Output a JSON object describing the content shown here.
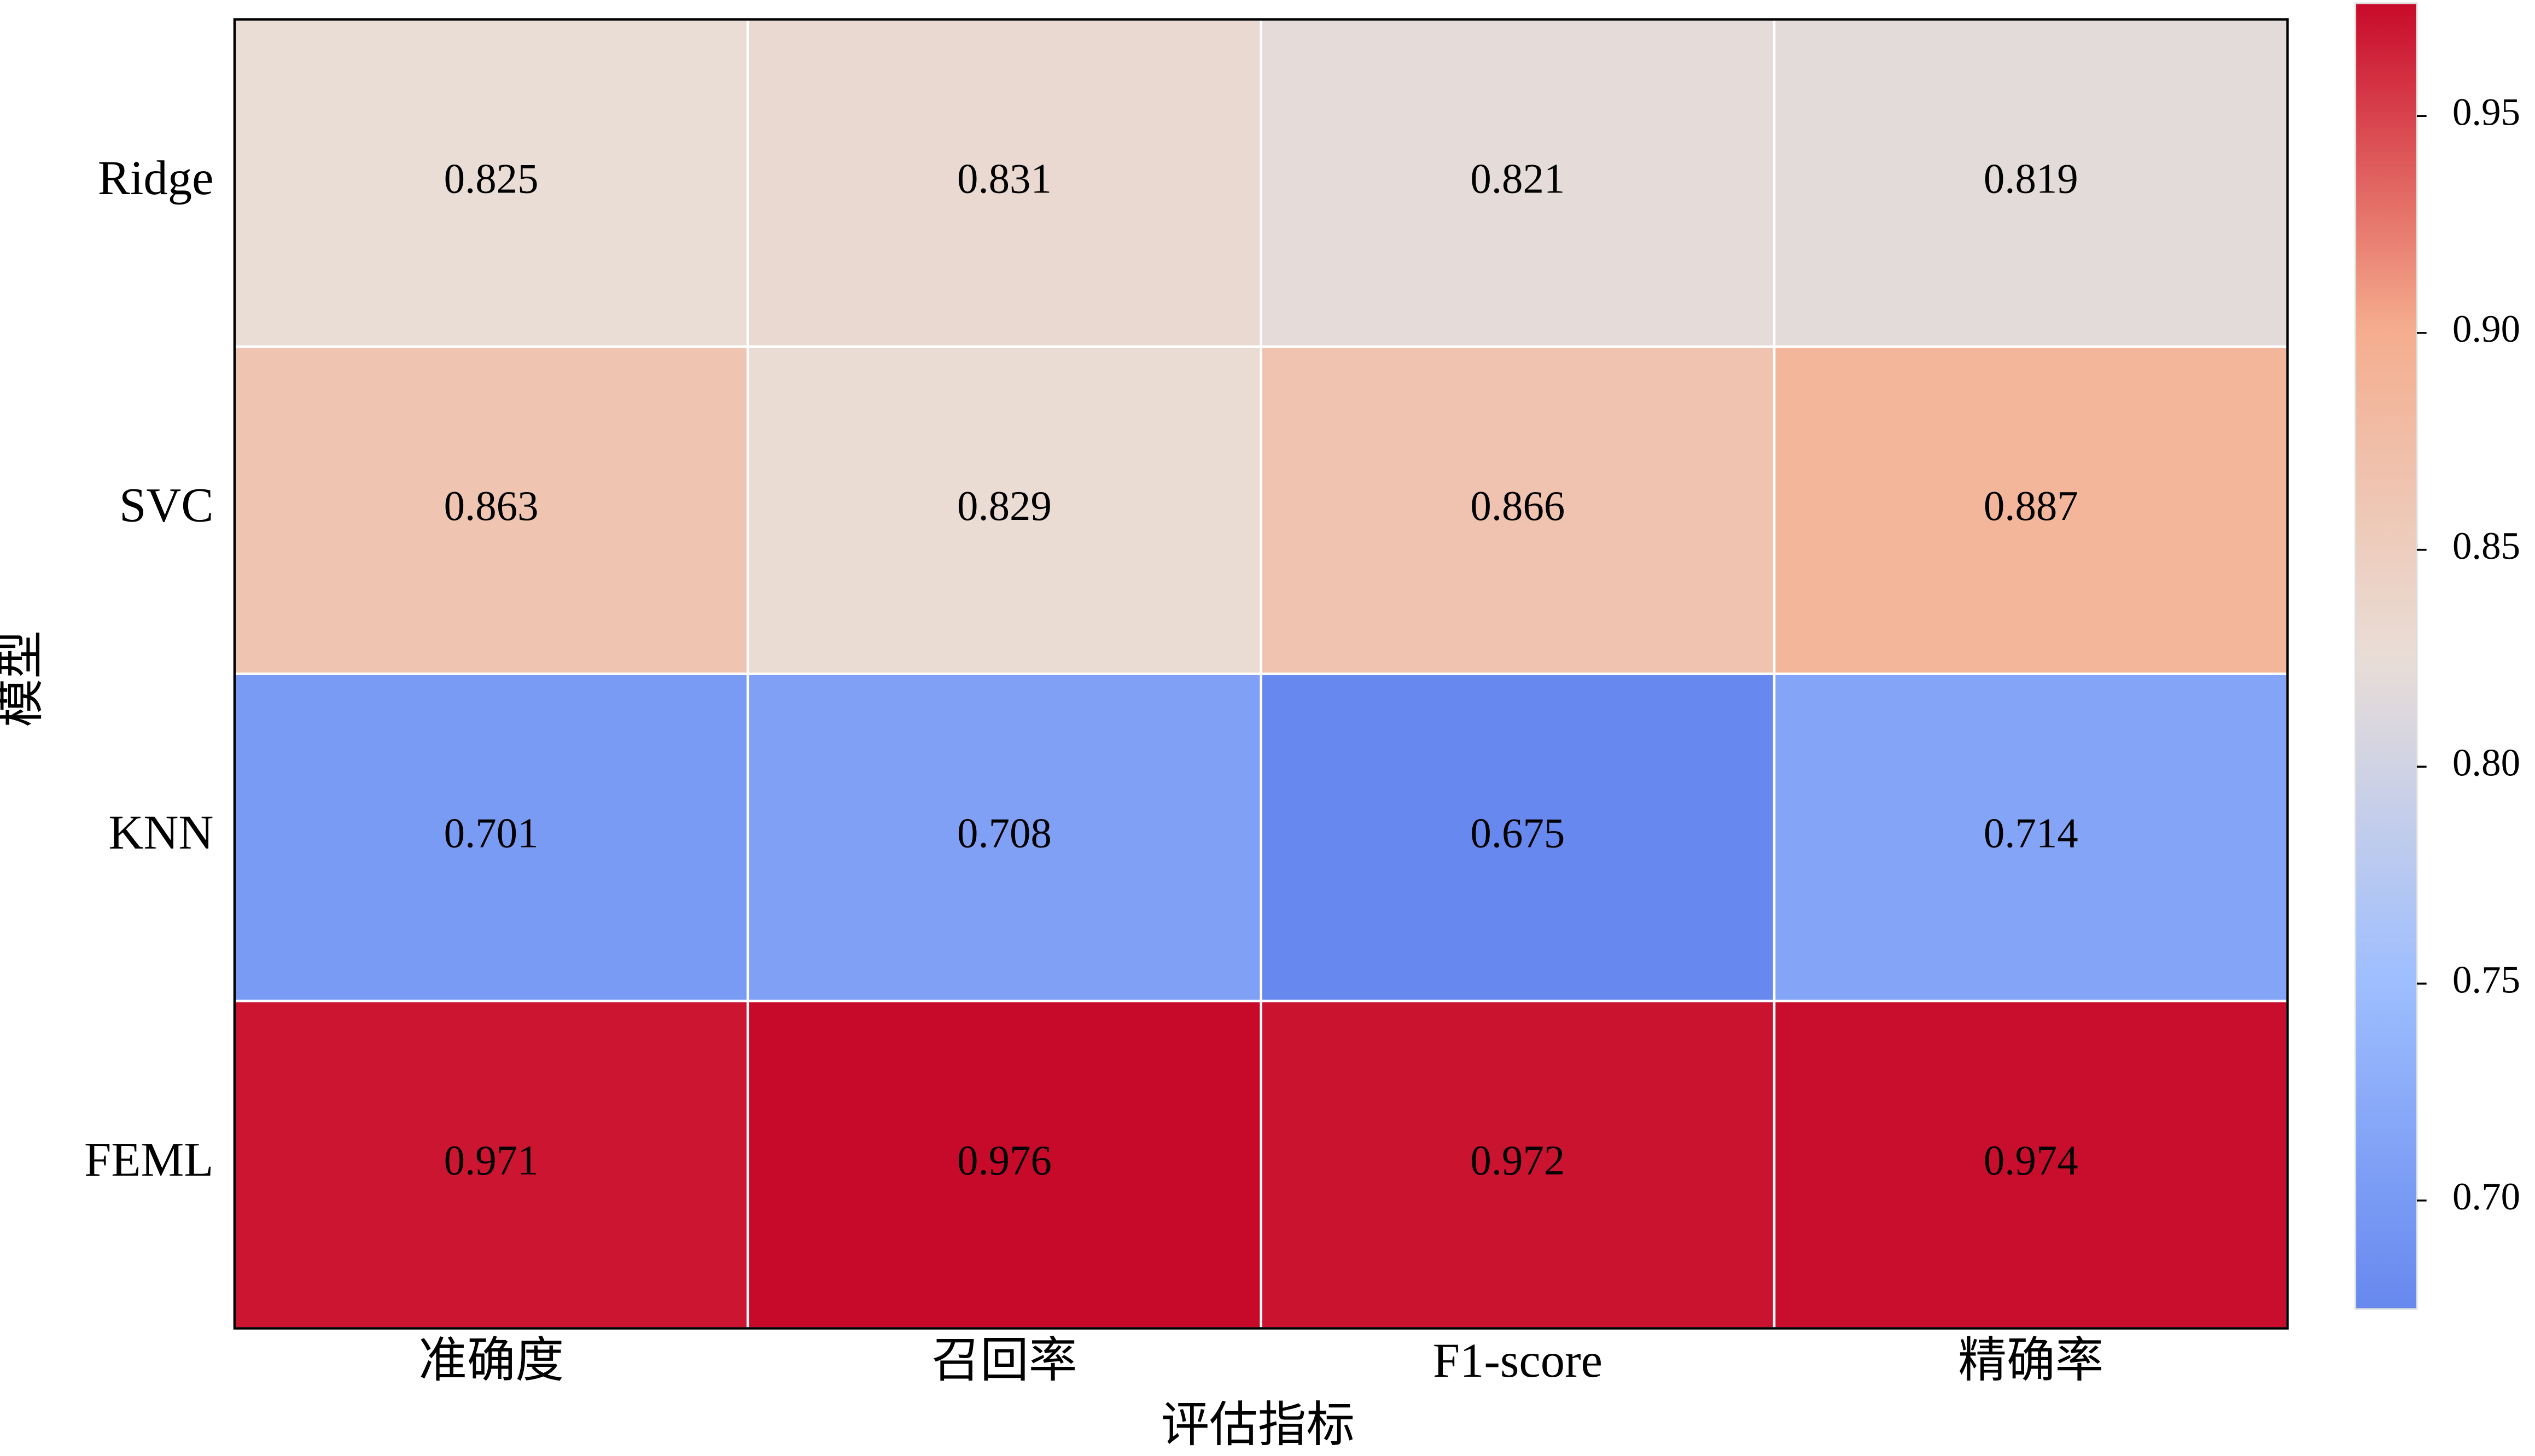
{
  "chart_data": {
    "type": "heatmap",
    "x_label": "评估指标",
    "y_label": "模型",
    "columns": [
      "准确度",
      "召回率",
      "F1-score",
      "精确率"
    ],
    "rows": [
      "Ridge",
      "SVC",
      "KNN",
      "FEML"
    ],
    "values": [
      [
        0.825,
        0.831,
        0.821,
        0.819
      ],
      [
        0.863,
        0.829,
        0.866,
        0.887
      ],
      [
        0.701,
        0.708,
        0.675,
        0.714
      ],
      [
        0.971,
        0.976,
        0.972,
        0.974
      ]
    ],
    "colorbar": {
      "lim": [
        0.675,
        0.976
      ],
      "ticks": [
        {
          "value": 0.7,
          "label": "0.70"
        },
        0.75,
        {
          "value": 0.8,
          "label": "0.80"
        },
        0.85,
        {
          "value": 0.9,
          "label": "0.90"
        },
        0.95
      ],
      "colormap": [
        "#6788ee",
        "#9ebeff",
        "#e9ddd6",
        "#f5ad8e",
        "#c80a2a"
      ]
    }
  }
}
